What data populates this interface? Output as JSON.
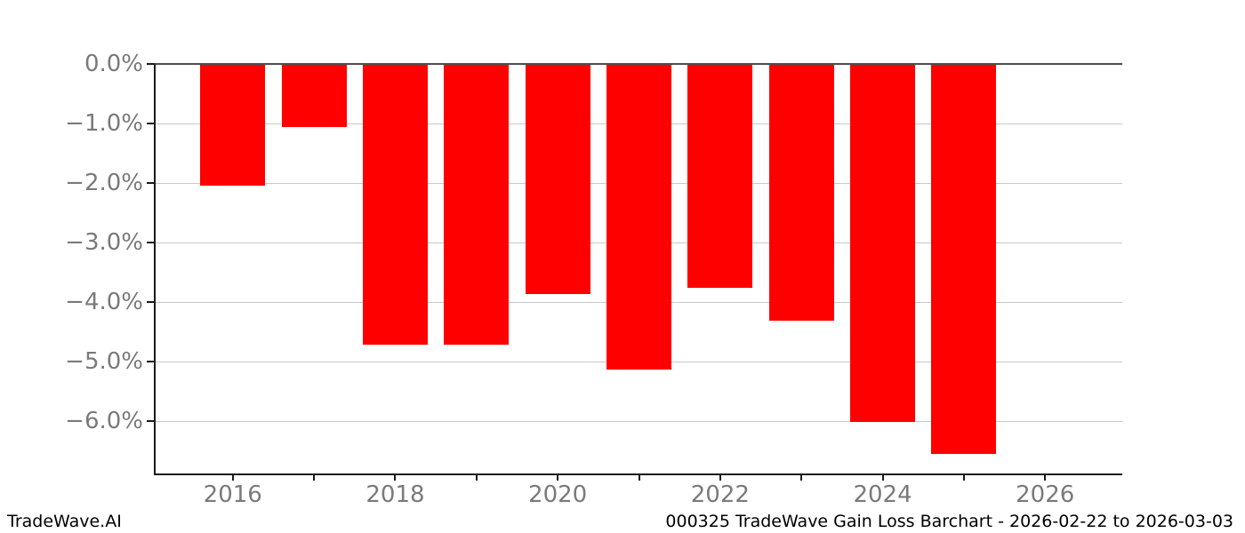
{
  "footer": {
    "brand": "TradeWave.AI",
    "title": "000325 TradeWave Gain Loss Barchart - 2026-02-22 to 2026-03-03"
  },
  "chart_data": {
    "type": "bar",
    "title": "000325 TradeWave Gain Loss Barchart - 2026-02-22 to 2026-03-03",
    "categories": [
      2016,
      2017,
      2018,
      2019,
      2020,
      2021,
      2022,
      2023,
      2024,
      2025
    ],
    "values": [
      -2.03,
      -1.05,
      -4.7,
      -4.7,
      -3.85,
      -5.12,
      -3.74,
      -4.29,
      -5.99,
      -6.53
    ],
    "unit": "%",
    "bar_color": "#ff0000",
    "xlabel": "",
    "ylabel": "",
    "xlim": [
      2015.05,
      2026.95
    ],
    "ylim": [
      -6.86,
      0
    ],
    "yticks": [
      0,
      -1,
      -2,
      -3,
      -4,
      -5,
      -6
    ],
    "ytick_labels": [
      "0.0%",
      "−1.0%",
      "−2.0%",
      "−3.0%",
      "−4.0%",
      "−5.0%",
      "−6.0%"
    ],
    "xticks_labeled": [
      2016,
      2018,
      2020,
      2022,
      2024,
      2026
    ],
    "xticks_minor": [
      2016,
      2017,
      2018,
      2019,
      2020,
      2021,
      2022,
      2023,
      2024,
      2025,
      2026
    ],
    "grid": "horizontal",
    "grid_color": "#c9c9c9",
    "tick_label_color": "#7a7a7a",
    "legend": "none",
    "bar_rel_width": 0.8
  }
}
